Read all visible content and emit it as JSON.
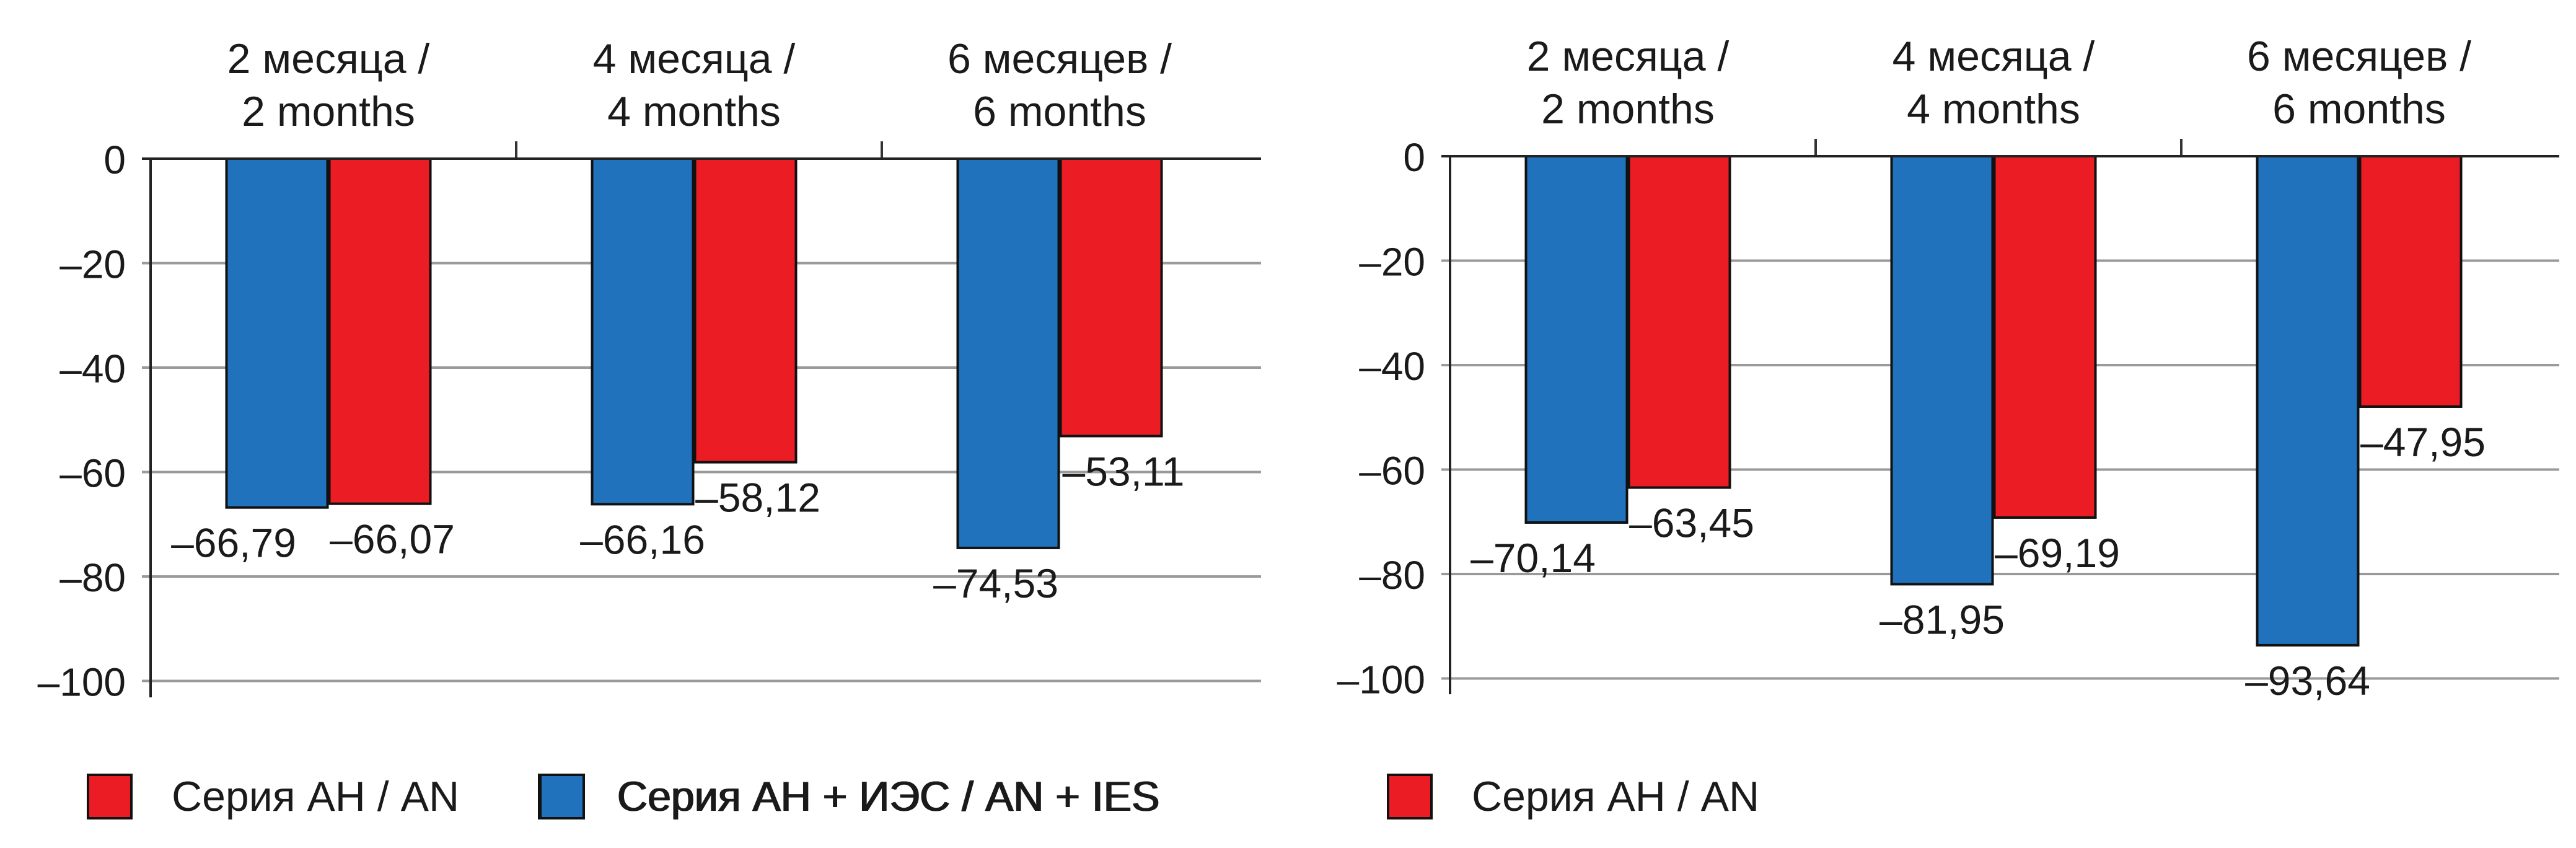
{
  "chart_data": [
    {
      "type": "bar",
      "categories": [
        {
          "line1": "2 месяца /",
          "line2": "2 months"
        },
        {
          "line1": "4 месяца /",
          "line2": "4 months"
        },
        {
          "line1": "6 месяцев /",
          "line2": "6 months"
        }
      ],
      "series": [
        {
          "name": "Серия АН + ИЭС / AN + IES",
          "color": "#1f72bb",
          "values": [
            -66.79,
            -66.16,
            -74.53
          ],
          "labels": [
            "–66,79",
            "–66,16",
            "–74,53"
          ]
        },
        {
          "name": "Серия АН / AN",
          "color": "#ec1c24",
          "values": [
            -66.07,
            -58.12,
            -53.11
          ],
          "labels": [
            "–66,07",
            "–58,12",
            "–53,11"
          ]
        }
      ],
      "ylim": [
        -100,
        0
      ],
      "yticks": [
        0,
        -20,
        -40,
        -60,
        -80,
        -100
      ],
      "ytick_labels": [
        "0",
        "–20",
        "–40",
        "–60",
        "–80",
        "–100"
      ],
      "grid": true,
      "legend": [
        {
          "label": "Серия АН / AN",
          "color": "#ec1c24"
        },
        {
          "label": "Серия АН + ИЭС / AN + IES",
          "color": "#1f72bb"
        }
      ],
      "legend_position": "bottom"
    },
    {
      "type": "bar",
      "categories": [
        {
          "line1": "2 месяца /",
          "line2": "2 months"
        },
        {
          "line1": "4 месяца /",
          "line2": "4 months"
        },
        {
          "line1": "6 месяцев /",
          "line2": "6 months"
        }
      ],
      "series": [
        {
          "name": "Серия АН + ИЭС / AN + IES",
          "color": "#1f72bb",
          "values": [
            -70.14,
            -81.95,
            -93.64
          ],
          "labels": [
            "–70,14",
            "–81,95",
            "–93,64"
          ]
        },
        {
          "name": "Серия АН / AN",
          "color": "#ec1c24",
          "values": [
            -63.45,
            -69.19,
            -47.95
          ],
          "labels": [
            "–63,45",
            "–69,19",
            "–47,95"
          ]
        }
      ],
      "ylim": [
        -100,
        0
      ],
      "yticks": [
        0,
        -20,
        -40,
        -60,
        -80,
        -100
      ],
      "ytick_labels": [
        "0",
        "–20",
        "–40",
        "–60",
        "–80",
        "–100"
      ],
      "grid": true,
      "legend": [
        {
          "label": "Серия АН / AN",
          "color": "#ec1c24"
        },
        {
          "label": "Серия АН + ИЭС / AN + IES",
          "color": "#1f72bb"
        }
      ],
      "legend_position": "bottom"
    }
  ]
}
